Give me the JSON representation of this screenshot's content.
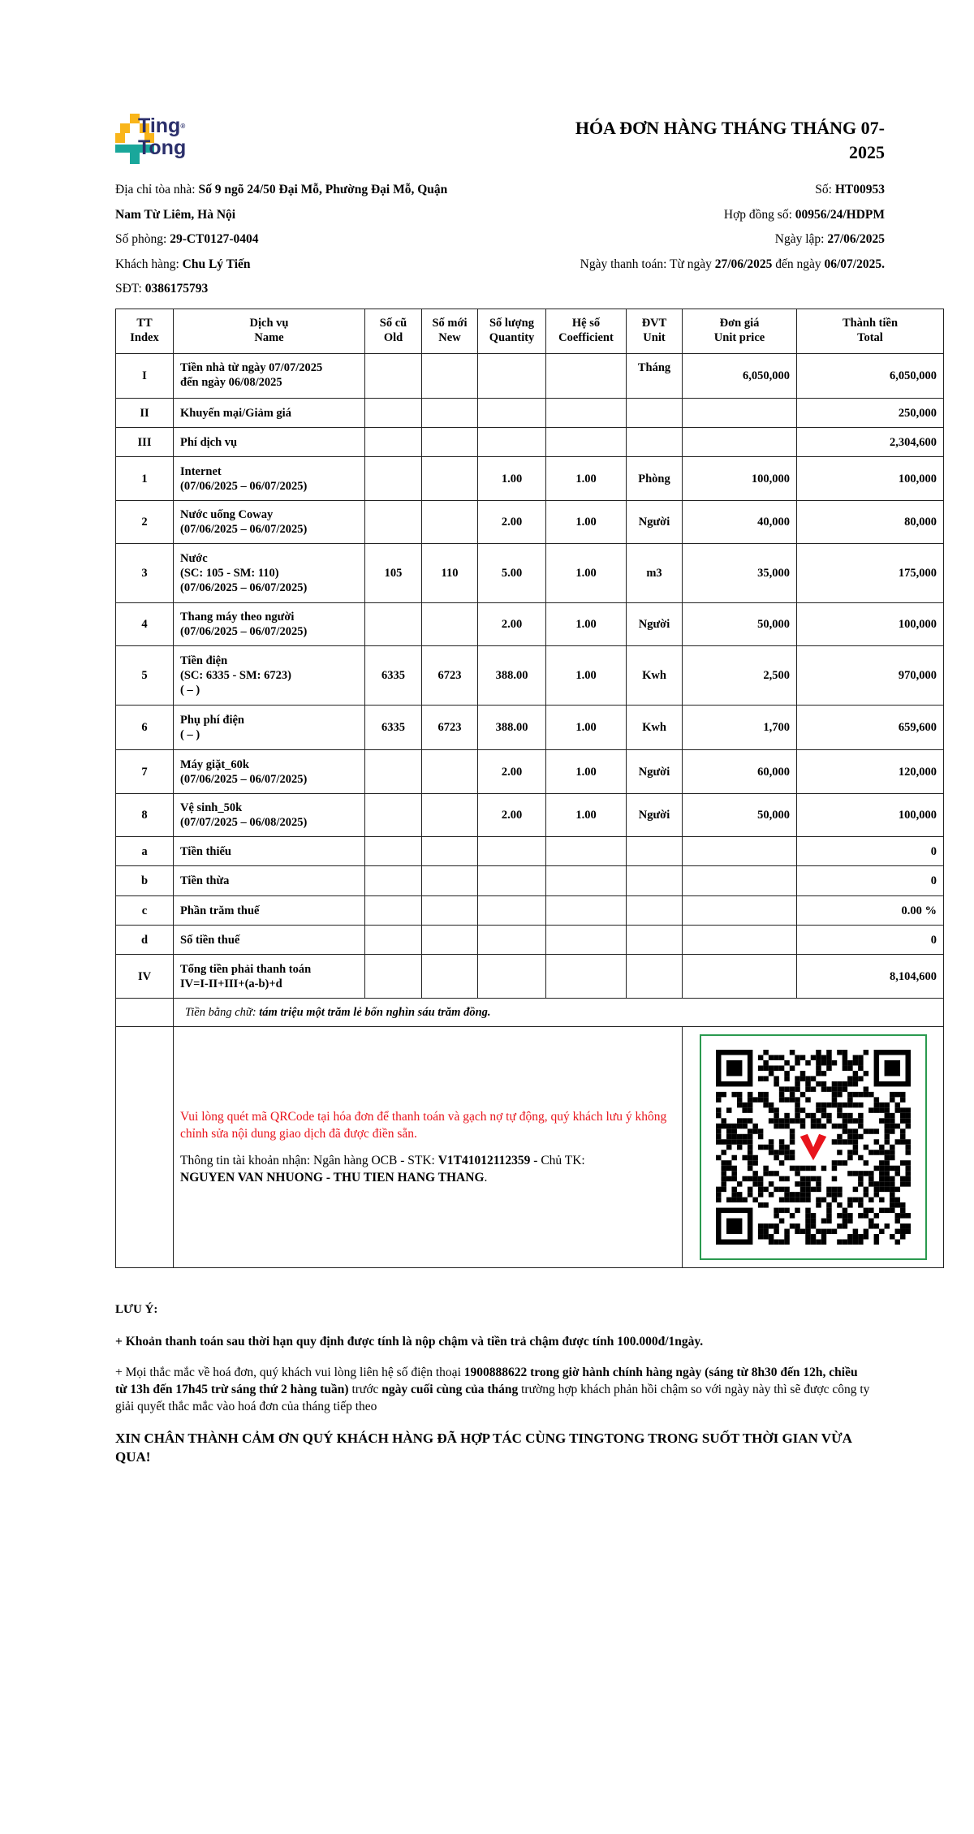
{
  "logo": {
    "line1": "Ting",
    "line2": "Tong",
    "mark": "®",
    "colors": {
      "yellow": "#f9b51a",
      "teal": "#1aa79b",
      "navy": "#2b2f6b"
    }
  },
  "title": "HÓA ĐƠN HÀNG THÁNG THÁNG 07-2025",
  "info": {
    "address_label": "Địa chỉ tòa nhà: ",
    "address_line1": "Số 9 ngõ 24/50 Đại Mỗ, Phường Đại Mỗ, Quận",
    "address_line2": "Nam Từ Liêm, Hà Nội",
    "room_label": "Số phòng: ",
    "room": "29-CT0127-0404",
    "customer_label": "Khách hàng: ",
    "customer": "Chu Lý Tiến",
    "phone_label": "SĐT: ",
    "phone": "0386175793",
    "no_label": "Số: ",
    "no": "HT00953",
    "contract_label": "Hợp đồng số: ",
    "contract": "00956/24/HDPM",
    "date_label": "Ngày lập: ",
    "date": "27/06/2025",
    "pay_label": "Ngày thanh toán: Từ ngày ",
    "pay_from": "27/06/2025",
    "pay_mid": " đến ngày ",
    "pay_to": "06/07/2025."
  },
  "table": {
    "headers": [
      [
        "TT",
        "Index"
      ],
      [
        "Dịch vụ",
        "Name"
      ],
      [
        "Số cũ",
        "Old"
      ],
      [
        "Số mới",
        "New"
      ],
      [
        "Số lượng",
        "Quantity"
      ],
      [
        "Hệ số",
        "Coefficient"
      ],
      [
        "ĐVT",
        "Unit"
      ],
      [
        "Đơn giá",
        "Unit price"
      ],
      [
        "Thành tiền",
        "Total"
      ]
    ],
    "rows": [
      {
        "idx": "I",
        "name": [
          "Tiền nhà từ ngày 07/07/2025",
          "đến ngày 06/08/2025"
        ],
        "old": "",
        "new": "",
        "qty": "",
        "coef": "",
        "unit": "Tháng",
        "price": "6,050,000",
        "total": "6,050,000"
      },
      {
        "idx": "II",
        "name": [
          "Khuyến mại/Giảm giá"
        ],
        "old": "",
        "new": "",
        "qty": "",
        "coef": "",
        "unit": "",
        "price": "",
        "total": "250,000"
      },
      {
        "idx": "III",
        "name": [
          "Phí dịch vụ"
        ],
        "old": "",
        "new": "",
        "qty": "",
        "coef": "",
        "unit": "",
        "price": "",
        "total": "2,304,600"
      },
      {
        "idx": "1",
        "name": [
          "Internet",
          "(07/06/2025 – 06/07/2025)"
        ],
        "old": "",
        "new": "",
        "qty": "1.00",
        "coef": "1.00",
        "unit": "Phòng",
        "price": "100,000",
        "total": "100,000"
      },
      {
        "idx": "2",
        "name": [
          "Nước uống Coway",
          "(07/06/2025 – 06/07/2025)"
        ],
        "old": "",
        "new": "",
        "qty": "2.00",
        "coef": "1.00",
        "unit": "Người",
        "price": "40,000",
        "total": "80,000"
      },
      {
        "idx": "3",
        "name": [
          "Nước",
          "(SC: 105 - SM: 110)",
          "(07/06/2025 – 06/07/2025)"
        ],
        "old": "105",
        "new": "110",
        "qty": "5.00",
        "coef": "1.00",
        "unit": "m3",
        "price": "35,000",
        "total": "175,000"
      },
      {
        "idx": "4",
        "name": [
          "Thang máy theo người",
          "(07/06/2025 – 06/07/2025)"
        ],
        "old": "",
        "new": "",
        "qty": "2.00",
        "coef": "1.00",
        "unit": "Người",
        "price": "50,000",
        "total": "100,000"
      },
      {
        "idx": "5",
        "name": [
          "Tiền điện",
          "(SC: 6335 - SM: 6723)",
          "( – )"
        ],
        "old": "6335",
        "new": "6723",
        "qty": "388.00",
        "coef": "1.00",
        "unit": "Kwh",
        "price": "2,500",
        "total": "970,000"
      },
      {
        "idx": "6",
        "name": [
          "Phụ phí điện",
          "( – )"
        ],
        "old": "6335",
        "new": "6723",
        "qty": "388.00",
        "coef": "1.00",
        "unit": "Kwh",
        "price": "1,700",
        "total": "659,600"
      },
      {
        "idx": "7",
        "name": [
          "Máy giặt_60k",
          "(07/06/2025 – 06/07/2025)"
        ],
        "old": "",
        "new": "",
        "qty": "2.00",
        "coef": "1.00",
        "unit": "Người",
        "price": "60,000",
        "total": "120,000"
      },
      {
        "idx": "8",
        "name": [
          "Vệ sinh_50k",
          "(07/07/2025 – 06/08/2025)"
        ],
        "old": "",
        "new": "",
        "qty": "2.00",
        "coef": "1.00",
        "unit": "Người",
        "price": "50,000",
        "total": "100,000"
      },
      {
        "idx": "a",
        "name": [
          "Tiền thiếu"
        ],
        "old": "",
        "new": "",
        "qty": "",
        "coef": "",
        "unit": "",
        "price": "",
        "total": "0"
      },
      {
        "idx": "b",
        "name": [
          "Tiền thừa"
        ],
        "old": "",
        "new": "",
        "qty": "",
        "coef": "",
        "unit": "",
        "price": "",
        "total": "0"
      },
      {
        "idx": "c",
        "name": [
          "Phần trăm thuế"
        ],
        "old": "",
        "new": "",
        "qty": "",
        "coef": "",
        "unit": "",
        "price": "",
        "total": "0.00 %"
      },
      {
        "idx": "d",
        "name": [
          "Số tiền thuế"
        ],
        "old": "",
        "new": "",
        "qty": "",
        "coef": "",
        "unit": "",
        "price": "",
        "total": "0"
      },
      {
        "idx": "IV",
        "name": [
          "Tổng tiền phải thanh toán",
          "IV=I-II+III+(a-b)+d"
        ],
        "old": "",
        "new": "",
        "qty": "",
        "coef": "",
        "unit": "",
        "price": "",
        "total": "8,104,600"
      }
    ],
    "words_label": "Tiền bằng chữ: ",
    "words": "tám triệu một trăm lẻ bốn nghìn sáu trăm đồng."
  },
  "payment": {
    "notice": "Vui lòng quét mã QRCode tại hóa đơn để thanh toán và gạch nợ tự động, quý khách lưu ý không chỉnh sửa nội dung giao dịch đã được điền sẵn.",
    "account_prefix": "Thông tin tài khoản nhận: Ngân hàng OCB - STK: ",
    "account_no": "V1T41012112359",
    "owner_prefix": " - Chủ TK:",
    "owner": "NGUYEN VAN NHUONG - THU TIEN HANG THANG",
    "owner_suffix": ".",
    "qr_icon": "qr-code-with-heart-logo",
    "notice_color": "#e8141c",
    "qr_border_color": "#2a9a4f"
  },
  "notes": {
    "title": "LƯU Ý:",
    "late": "+ Khoản thanh toán sau thời hạn quy định được tính là nộp chậm và tiền trả chậm được tính 100.000đ/1ngày.",
    "q_prefix": "+ Mọi thắc mắc về hoá đơn, quý khách vui lòng liên hệ số điện thoại ",
    "q_bold1": "1900888622 trong giờ hành chính hàng ngày (sáng từ 8h30 đến 12h, chiều từ 13h đến 17h45 trừ sáng thứ 2 hàng tuần)",
    "q_mid": " trước ",
    "q_bold2": "ngày cuối cùng của tháng",
    "q_suffix": " trường hợp khách phản hồi chậm so với ngày này thì sẽ được công ty giải quyết thắc mắc vào hoá đơn của tháng tiếp theo",
    "thanks": "XIN CHÂN THÀNH CẢM ƠN QUÝ KHÁCH HÀNG ĐÃ HỢP TÁC CÙNG TINGTONG TRONG SUỐT THỜI GIAN VỪA QUA!"
  }
}
